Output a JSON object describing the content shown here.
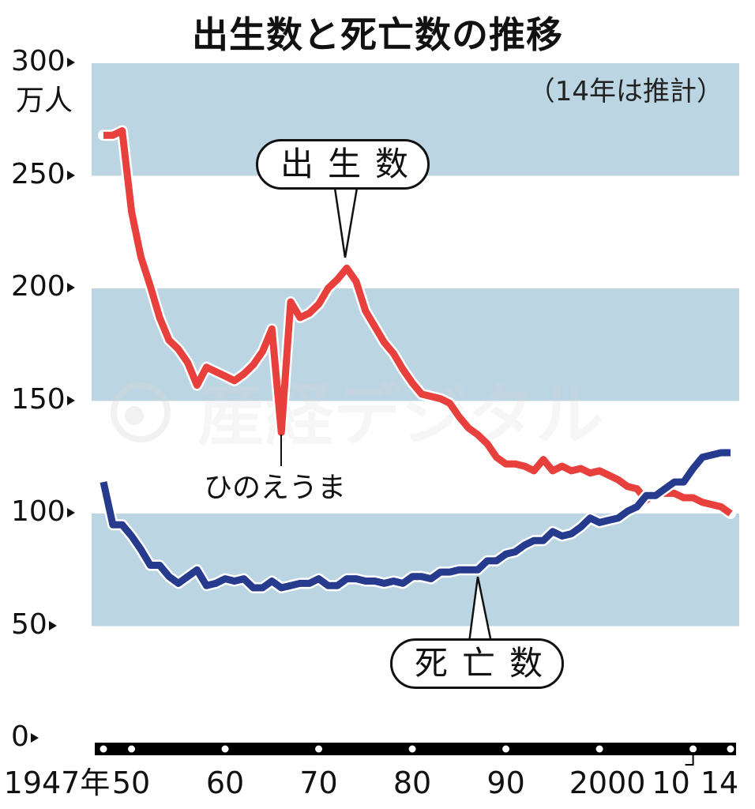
{
  "title": "出生数と死亡数の推移",
  "note": "（14年は推計）",
  "y_axis": {
    "unit": "万人",
    "ticks": [
      "300",
      "250",
      "200",
      "150",
      "100",
      "50",
      "0"
    ]
  },
  "x_axis": {
    "ticks": [
      "1947年",
      "50",
      "60",
      "70",
      "80",
      "90",
      "2000",
      "10",
      "14"
    ]
  },
  "labels": {
    "births": "出生数",
    "deaths": "死亡数",
    "hinoeuma": "ひのえうま"
  },
  "colors": {
    "births": "#e8403c",
    "deaths": "#263a8e",
    "band": "#bcd5e2",
    "axis": "#000000"
  },
  "chart_data": {
    "type": "line",
    "title": "出生数と死亡数の推移",
    "subtitle": "（14年は推計）",
    "xlabel": "年",
    "ylabel": "万人",
    "ylim": [
      0,
      300
    ],
    "xlim": [
      1947,
      2014
    ],
    "grid": "alternating horizontal bands (50-100, 150-200, 250-300)",
    "annotations": [
      {
        "text": "出生数",
        "target_year": 1973,
        "target_value": 209
      },
      {
        "text": "死亡数",
        "target_year": 1987,
        "target_value": 75
      },
      {
        "text": "ひのえうま",
        "target_year": 1966,
        "target_value": 136
      },
      {
        "text": "（14年は推計）",
        "position": "top-right"
      }
    ],
    "x": [
      1947,
      1948,
      1949,
      1950,
      1951,
      1952,
      1953,
      1954,
      1955,
      1956,
      1957,
      1958,
      1959,
      1960,
      1961,
      1962,
      1963,
      1964,
      1965,
      1966,
      1967,
      1968,
      1969,
      1970,
      1971,
      1972,
      1973,
      1974,
      1975,
      1976,
      1977,
      1978,
      1979,
      1980,
      1981,
      1982,
      1983,
      1984,
      1985,
      1986,
      1987,
      1988,
      1989,
      1990,
      1991,
      1992,
      1993,
      1994,
      1995,
      1996,
      1997,
      1998,
      1999,
      2000,
      2001,
      2002,
      2003,
      2004,
      2005,
      2006,
      2007,
      2008,
      2009,
      2010,
      2011,
      2012,
      2013,
      2014
    ],
    "series": [
      {
        "name": "出生数",
        "values": [
          268,
          268,
          270,
          234,
          214,
          201,
          187,
          177,
          173,
          167,
          157,
          165,
          163,
          161,
          159,
          162,
          166,
          172,
          182,
          136,
          194,
          187,
          189,
          193,
          200,
          204,
          209,
          203,
          190,
          183,
          176,
          171,
          164,
          158,
          153,
          152,
          151,
          149,
          143,
          138,
          135,
          131,
          125,
          122,
          122,
          121,
          119,
          124,
          119,
          121,
          119,
          120,
          118,
          119,
          117,
          115,
          112,
          111,
          106,
          109,
          109,
          109,
          107,
          107,
          105,
          104,
          103,
          100
        ]
      },
      {
        "name": "死亡数",
        "values": [
          114,
          95,
          95,
          90,
          84,
          77,
          77,
          72,
          69,
          72,
          75,
          68,
          69,
          71,
          70,
          71,
          67,
          67,
          70,
          67,
          68,
          69,
          69,
          71,
          68,
          68,
          71,
          71,
          70,
          70,
          69,
          70,
          69,
          72,
          72,
          71,
          74,
          74,
          75,
          75,
          75,
          79,
          79,
          82,
          83,
          86,
          88,
          88,
          92,
          90,
          91,
          94,
          98,
          96,
          97,
          98,
          101,
          103,
          108,
          108,
          111,
          114,
          114,
          120,
          125,
          126,
          127,
          127
        ]
      }
    ]
  }
}
